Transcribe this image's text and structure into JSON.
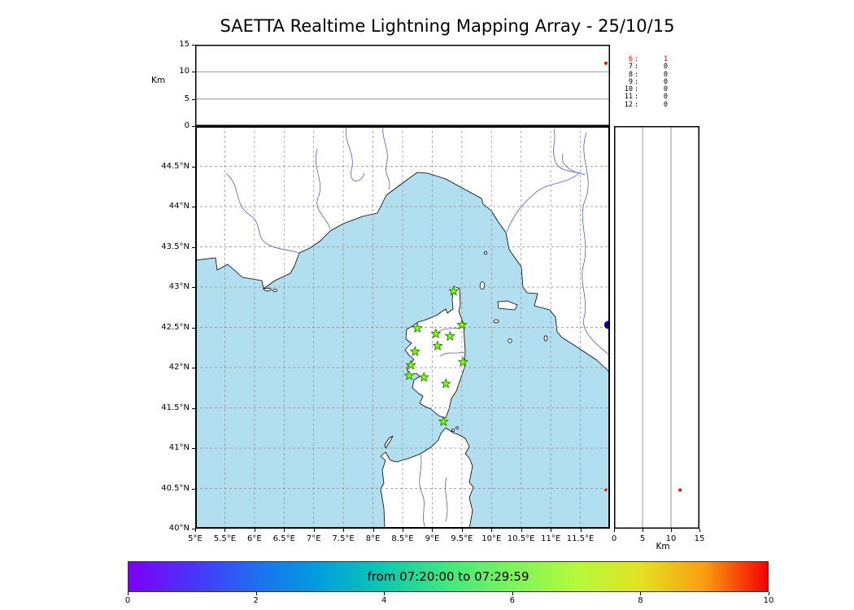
{
  "title": "SAETTA Realtime Lightning Mapping Array - 25/10/15",
  "chart_data": {
    "type": "scatter",
    "title": "SAETTA Realtime Lightning Mapping Array - 25/10/15",
    "map": {
      "lon_range": [
        5,
        12
      ],
      "lat_range": [
        40,
        45
      ],
      "lon_ticks": [
        5,
        5.5,
        6,
        6.5,
        7,
        7.5,
        8,
        8.5,
        9,
        9.5,
        10,
        10.5,
        11,
        11.5
      ],
      "lon_tick_labels": [
        "5°E",
        "5.5°E",
        "6°E",
        "6.5°E",
        "7°E",
        "7.5°E",
        "8°E",
        "8.5°E",
        "9°E",
        "9.5°E",
        "10°E",
        "10.5°E",
        "11°E",
        "11.5°E"
      ],
      "lat_ticks": [
        40,
        40.5,
        41,
        41.5,
        42,
        42.5,
        43,
        43.5,
        44,
        44.5
      ],
      "lat_tick_labels": [
        "40°N",
        "40.5°N",
        "41°N",
        "41.5°N",
        "42°N",
        "42.5°N",
        "43°N",
        "43.5°N",
        "44°N",
        "44.5°N"
      ],
      "sea_color": "#b2dff0",
      "land_color": "#ffffff",
      "grid_color": "#8a8a8a",
      "river_color": "#3c46c8",
      "station_fill": "#7CFC00",
      "station_edge": "#2e7d00",
      "stations": [
        {
          "lon": 9.36,
          "lat": 42.95
        },
        {
          "lon": 8.75,
          "lat": 42.49
        },
        {
          "lon": 9.06,
          "lat": 42.42
        },
        {
          "lon": 9.3,
          "lat": 42.39
        },
        {
          "lon": 9.5,
          "lat": 42.53
        },
        {
          "lon": 8.71,
          "lat": 42.2
        },
        {
          "lon": 9.09,
          "lat": 42.27
        },
        {
          "lon": 8.64,
          "lat": 42.03
        },
        {
          "lon": 9.52,
          "lat": 42.07
        },
        {
          "lon": 8.61,
          "lat": 41.9
        },
        {
          "lon": 8.86,
          "lat": 41.88
        },
        {
          "lon": 9.23,
          "lat": 41.8
        },
        {
          "lon": 9.19,
          "lat": 41.33
        }
      ],
      "city_marker": {
        "lon": 11.97,
        "lat": 42.53,
        "color": "#0000b8"
      }
    },
    "altitude_panel_top": {
      "axis_label": "Km",
      "range": [
        0,
        15
      ],
      "ticks": [
        0,
        5,
        10,
        15
      ],
      "gridlines": [
        5,
        10
      ]
    },
    "altitude_panel_right": {
      "axis_label": "Km",
      "range": [
        0,
        15
      ],
      "ticks": [
        0,
        5,
        10,
        15
      ],
      "gridlines": [
        5,
        10
      ]
    },
    "sources": [
      {
        "lon": 11.93,
        "lat": 40.48,
        "alt_km": 11.6,
        "color": "#ff0000"
      }
    ],
    "counts": [
      {
        "label": "6",
        "value": "1",
        "color": "#ff0000"
      },
      {
        "label": "7",
        "value": "0",
        "color": "#000000"
      },
      {
        "label": "8",
        "value": "0",
        "color": "#000000"
      },
      {
        "label": "9",
        "value": "0",
        "color": "#000000"
      },
      {
        "label": "10",
        "value": "0",
        "color": "#000000"
      },
      {
        "label": "11",
        "value": "0",
        "color": "#000000"
      },
      {
        "label": "12",
        "value": "0",
        "color": "#000000"
      }
    ],
    "colorbar": {
      "label": "from 07:20:00 to 07:29:59",
      "range": [
        0,
        10
      ],
      "ticks": [
        0,
        2,
        4,
        6,
        8,
        10
      ],
      "gradient": [
        "#7d00f5",
        "#4b33fa",
        "#1e6ef0",
        "#00a0dc",
        "#0ec9ae",
        "#41e87d",
        "#7df45a",
        "#b4f93c",
        "#e3e222",
        "#fa9e12",
        "#f50000"
      ]
    }
  }
}
